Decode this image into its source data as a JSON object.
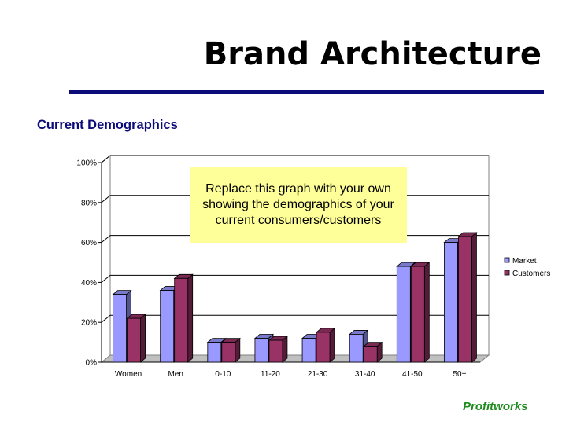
{
  "slide": {
    "title": "Brand Architecture",
    "subtitle": "Current Demographics",
    "brand": "Profitworks",
    "note": "Replace this graph with your own showing the demographics of your current consumers/customers"
  },
  "colors": {
    "title_rule": "#0b0b7a",
    "subtitle": "#0b0b7a",
    "brand": "#1e8a1e",
    "market": "#9999ff",
    "customers": "#993366",
    "note_bg": "#ffff99"
  },
  "chart_data": {
    "type": "bar",
    "style": "3d-clustered",
    "categories": [
      "Women",
      "Men",
      "0-10",
      "11-20",
      "21-30",
      "31-40",
      "41-50",
      "50+"
    ],
    "series": [
      {
        "name": "Market",
        "values": [
          34,
          36,
          10,
          12,
          12,
          14,
          48,
          60
        ]
      },
      {
        "name": "Customers",
        "values": [
          22,
          42,
          10,
          11,
          15,
          8,
          48,
          63
        ]
      }
    ],
    "ylim": [
      0,
      100
    ],
    "yticks": [
      "0%",
      "20%",
      "40%",
      "60%",
      "80%",
      "100%"
    ],
    "grid": true,
    "legend": "right"
  }
}
